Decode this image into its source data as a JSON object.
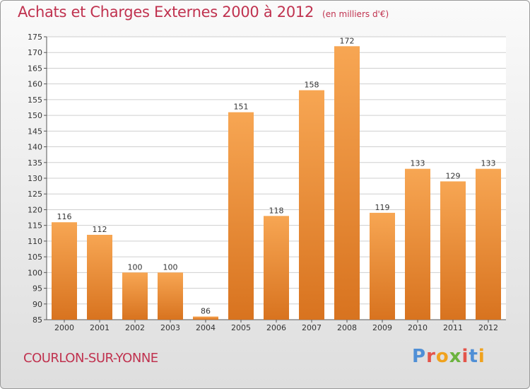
{
  "header": {
    "title": "Achats et Charges Externes 2000 à 2012",
    "subtitle": "(en milliers d'€)"
  },
  "footer": {
    "place": "COURLON-SUR-YONNE",
    "logo": {
      "p": "P",
      "r": "r",
      "o": "o",
      "x": "x",
      "i": "i",
      "t": "t",
      "i2": "i"
    }
  },
  "colors": {
    "title": "#c0324f",
    "bar_light": "#f7a653",
    "bar_dark": "#d8731f",
    "grid": "#cfcfcf"
  },
  "chart_data": {
    "type": "bar",
    "categories": [
      "2000",
      "2001",
      "2002",
      "2003",
      "2004",
      "2005",
      "2006",
      "2007",
      "2008",
      "2009",
      "2010",
      "2011",
      "2012"
    ],
    "values": [
      116,
      112,
      100,
      100,
      86,
      151,
      118,
      158,
      172,
      119,
      133,
      129,
      133
    ],
    "ylim": [
      85,
      175
    ],
    "ytick_step": 5,
    "grid": true,
    "data_labels": true
  }
}
